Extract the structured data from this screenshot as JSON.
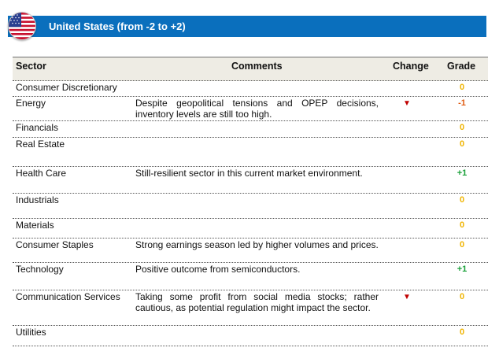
{
  "header": {
    "title": "United  States  (from  -2  to  +2)",
    "flag_icon": "us-flag-icon",
    "banner_color": "#0a6fbd"
  },
  "table": {
    "columns": {
      "sector": "Sector",
      "comments": "Comments",
      "change": "Change",
      "grade": "Grade"
    },
    "colors": {
      "neutral": "#f0b400",
      "positive": "#18a038",
      "negative": "#e05a10",
      "down_arrow": "#c00000"
    },
    "rows": [
      {
        "sector": "Consumer Discretionary",
        "comment": "",
        "change": "",
        "grade": "0",
        "tone": "neutral"
      },
      {
        "sector": "Energy",
        "comment": "Despite geopolitical tensions and OPEP decisions, inventory levels are still too high.",
        "change": "▼",
        "grade": "-1",
        "tone": "negative"
      },
      {
        "sector": "Financials",
        "comment": "",
        "change": "",
        "grade": "0",
        "tone": "neutral"
      },
      {
        "sector": "Real Estate",
        "comment": "",
        "change": "",
        "grade": "0",
        "tone": "neutral"
      },
      {
        "sector": "Health Care",
        "comment": "Still-resilient sector in this current market environment.",
        "change": "",
        "grade": "+1",
        "tone": "positive"
      },
      {
        "sector": "Industrials",
        "comment": "",
        "change": "",
        "grade": "0",
        "tone": "neutral"
      },
      {
        "sector": "Materials",
        "comment": "",
        "change": "",
        "grade": "0",
        "tone": "neutral"
      },
      {
        "sector": "Consumer Staples",
        "comment": "Strong earnings season led by higher volumes and prices.",
        "change": "",
        "grade": "0",
        "tone": "neutral"
      },
      {
        "sector": "Technology",
        "comment": "Positive outcome from semiconductors.",
        "change": "",
        "grade": "+1",
        "tone": "positive"
      },
      {
        "sector": "Communication Services",
        "comment": "Taking some profit from social media stocks; rather cautious, as potential regulation might impact the sector.",
        "change": "▼",
        "grade": "0",
        "tone": "neutral"
      },
      {
        "sector": "Utilities",
        "comment": "",
        "change": "",
        "grade": "0",
        "tone": "neutral"
      }
    ]
  }
}
